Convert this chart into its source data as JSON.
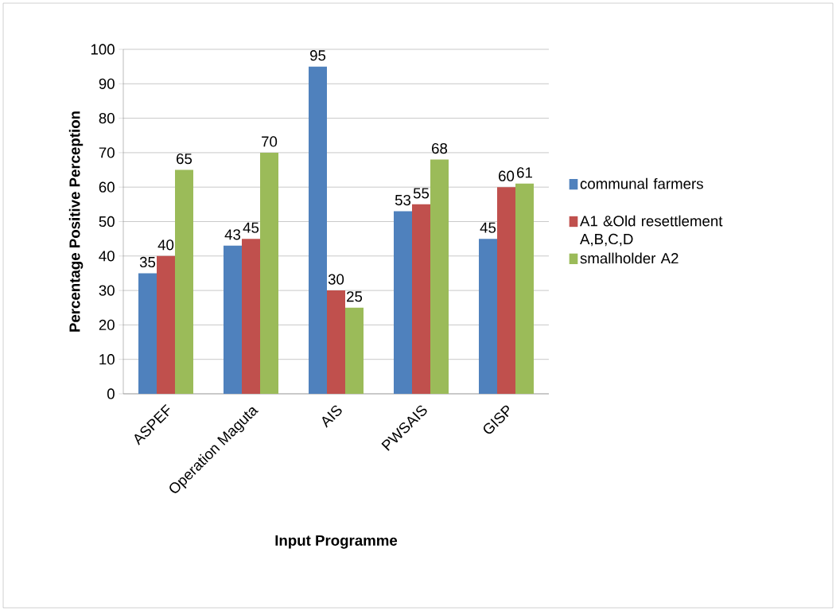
{
  "chart_data": {
    "type": "bar",
    "xlabel": "Input Programme",
    "ylabel": "Percentage Positive Perception",
    "categories": [
      "ASPEF",
      "Operation Maguta",
      "AIS",
      "PWSAIS",
      "GISP"
    ],
    "series": [
      {
        "name": "communal farmers",
        "color": "#4f81bd",
        "values": [
          35,
          43,
          95,
          53,
          45
        ]
      },
      {
        "name": "A1 &Old resettlement A,B,C,D",
        "color": "#c0504d",
        "values": [
          40,
          45,
          30,
          55,
          60
        ]
      },
      {
        "name": "smallholder A2",
        "color": "#9bbb59",
        "values": [
          65,
          70,
          25,
          68,
          61
        ]
      }
    ],
    "ylim": [
      0,
      100
    ],
    "yticks": [
      0,
      10,
      20,
      30,
      40,
      50,
      60,
      70,
      80,
      90,
      100
    ],
    "grid": "y",
    "legend": "right",
    "data_labels": true
  }
}
